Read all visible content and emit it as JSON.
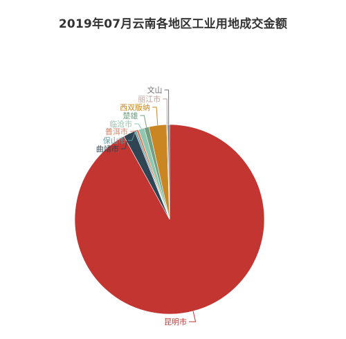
{
  "chart_data": {
    "type": "pie",
    "title": "2019年07月云南各地区工业用地成交金额",
    "slices": [
      {
        "name": "昆明市",
        "value": 92.0,
        "color": "#c23531"
      },
      {
        "name": "曲靖市",
        "value": 2.0,
        "color": "#2f4554"
      },
      {
        "name": "保山市",
        "value": 0.3,
        "color": "#61a0a8"
      },
      {
        "name": "普洱市",
        "value": 0.4,
        "color": "#d48265"
      },
      {
        "name": "临沧市",
        "value": 1.0,
        "color": "#91c7ae"
      },
      {
        "name": "楚雄",
        "value": 0.8,
        "color": "#749f83"
      },
      {
        "name": "西双版纳",
        "value": 3.0,
        "color": "#ca8622"
      },
      {
        "name": "丽江市",
        "value": 0.2,
        "color": "#bda29a"
      },
      {
        "name": "文山",
        "value": 0.3,
        "color": "#6e7074"
      }
    ],
    "legend": "none"
  }
}
